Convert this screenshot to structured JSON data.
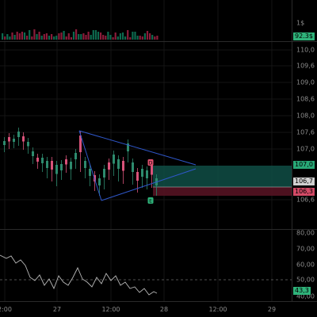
{
  "volume_pane": {
    "axis_label": "1$",
    "last_value_tag": "92.3$",
    "colors": {
      "up": "#0d6a4f",
      "down": "#8a1c3a"
    }
  },
  "price_pane": {
    "y_ticks": [
      "110,0",
      "109,6",
      "109,0",
      "108,6",
      "108,0",
      "107,6",
      "107,0",
      "106,6"
    ],
    "tags": [
      {
        "text": "107,0",
        "color": "#28a776"
      },
      {
        "text": "106,7",
        "color": "#cfcfcf"
      },
      {
        "text": "106,3",
        "color": "#d24a66"
      }
    ],
    "event_markers": [
      {
        "text": "D",
        "color": "#e0506e"
      },
      {
        "text": "E",
        "color": "#2fb37a"
      }
    ],
    "colors": {
      "up": "#2e8b6e",
      "down": "#d9537a",
      "trendline": "#2f57c9",
      "position_profit": "#0f4d45",
      "position_loss": "#5a1424"
    }
  },
  "rsi_pane": {
    "y_ticks": [
      "80,00",
      "70,00",
      "60,00",
      "50,00",
      "40,00"
    ],
    "value_tag": "43,3",
    "colors": {
      "line": "#b8b8b8",
      "midline": "#6a6a6a"
    }
  },
  "time_axis": {
    "labels": [
      "2:00",
      "27",
      "12:00",
      "28",
      "12:00",
      "29"
    ]
  }
}
